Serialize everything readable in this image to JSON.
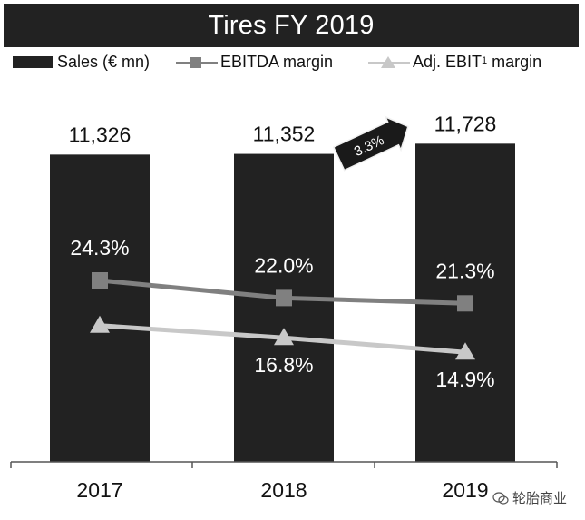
{
  "title": "Tires FY 2019",
  "legend": {
    "sales_label": "Sales (€ mn)",
    "ebitda_label": "EBITDA margin",
    "ebit_label_prefix": "Adj. EBIT",
    "ebit_label_sup": "1",
    "ebit_label_suffix": "margin"
  },
  "colors": {
    "bar": "#222222",
    "ebitda": "#808080",
    "ebit": "#c8c8c8",
    "title_bg": "#222222"
  },
  "chart_data": {
    "type": "bar",
    "categories": [
      "2017",
      "2018",
      "2019"
    ],
    "series": [
      {
        "name": "Sales (€ mn)",
        "type": "bar",
        "values": [
          11326,
          11352,
          11728
        ],
        "labels": [
          "11,326",
          "11,352",
          "11,728"
        ]
      },
      {
        "name": "EBITDA margin",
        "type": "line",
        "marker": "square",
        "values": [
          24.3,
          22.0,
          21.3
        ],
        "labels": [
          "24.3%",
          "22.0%",
          "21.3%"
        ]
      },
      {
        "name": "Adj. EBIT 1 margin",
        "type": "line",
        "marker": "triangle",
        "values": [
          18.4,
          16.8,
          14.9
        ],
        "labels": [
          "",
          "16.8%",
          "14.9%"
        ]
      }
    ],
    "callout": {
      "text": "3.3%",
      "between": [
        "2018",
        "2019"
      ]
    },
    "grid": false,
    "legend_position": "top"
  },
  "watermark": "轮胎商业"
}
